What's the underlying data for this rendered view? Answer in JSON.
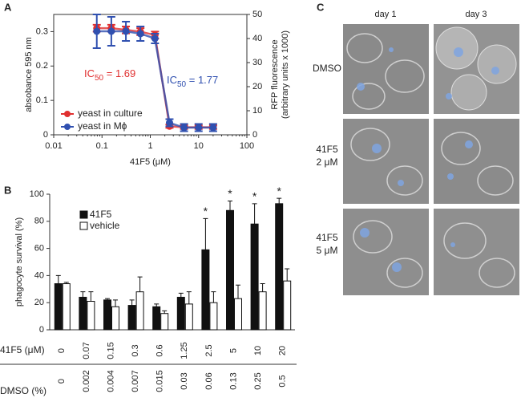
{
  "panel_labels": [
    "A",
    "B",
    "C"
  ],
  "chart_data": [
    {
      "type": "line",
      "xscale": "log",
      "xlabel": "41F5 (μM)",
      "ylabel": "absobance 595 nm",
      "y2label": [
        "RFP fluorescence",
        "(arbitrary units x 1000)"
      ],
      "xlim": [
        0.01,
        100
      ],
      "xticks": [
        0.01,
        0.1,
        1,
        10,
        100
      ],
      "ylim": [
        0,
        0.35
      ],
      "yticks": [
        0,
        0.1,
        0.2,
        0.3
      ],
      "y2lim": [
        0,
        50
      ],
      "y2ticks": [
        0,
        10,
        20,
        30,
        40,
        50
      ],
      "x": [
        0.078,
        0.156,
        0.3125,
        0.625,
        1.25,
        2.5,
        5,
        10,
        20
      ],
      "series": [
        {
          "name": "yeast in culture",
          "color": "#e03030",
          "axis": "y",
          "values": [
            0.31,
            0.31,
            0.305,
            0.3,
            0.29,
            0.025,
            0.022,
            0.022,
            0.022
          ],
          "errors": [
            0.01,
            0.01,
            0.01,
            0.01,
            0.01,
            0.005,
            0.005,
            0.005,
            0.005
          ]
        },
        {
          "name": "yeast in Mϕ",
          "color": "#3050b0",
          "axis": "y2",
          "values": [
            43,
            43,
            43,
            42,
            40,
            5,
            3,
            3,
            3
          ],
          "errors": [
            7,
            6,
            4,
            3,
            2,
            1.5,
            1.5,
            1.5,
            1.5
          ]
        }
      ],
      "annotations": [
        {
          "text": [
            "IC",
            "50",
            " = 1.69"
          ],
          "color": "#e03030"
        },
        {
          "text": [
            "IC",
            "50",
            " = 1.77"
          ],
          "color": "#3050b0"
        }
      ]
    },
    {
      "type": "bar",
      "ylabel": "phagocyte survival (%)",
      "ylim": [
        0,
        100
      ],
      "yticks": [
        0,
        20,
        40,
        60,
        80,
        100
      ],
      "row_labels": [
        "41F5 (μM)",
        "DMSO (%)"
      ],
      "categories": [
        "0",
        "0.07",
        "0.15",
        "0.3",
        "0.6",
        "1.25",
        "2.5",
        "5",
        "10",
        "20"
      ],
      "dmso_labels": [
        "0",
        "0.002",
        "0.004",
        "0.007",
        "0.015",
        "0.03",
        "0.06",
        "0.13",
        "0.25",
        "0.5"
      ],
      "series": [
        {
          "name": "41F5",
          "color": "#111111",
          "values": [
            34,
            24,
            22,
            18,
            17,
            24,
            59,
            88,
            78,
            93
          ],
          "errors": [
            6,
            4,
            1,
            4,
            2,
            3,
            23,
            7,
            15,
            4
          ],
          "star_labels": [
            null,
            null,
            null,
            null,
            null,
            null,
            "*",
            "*",
            "*",
            "*"
          ]
        },
        {
          "name": "vehicle",
          "color": "#ffffff",
          "values": [
            34,
            21,
            17,
            28,
            12,
            19,
            20,
            23,
            28,
            36
          ],
          "errors": [
            1,
            7,
            5,
            11,
            2,
            9,
            8,
            10,
            6,
            9
          ]
        }
      ]
    }
  ],
  "panel_c": {
    "columns": [
      "day 1",
      "day 3"
    ],
    "rows": [
      [
        "DMSO"
      ],
      [
        "41F5",
        "2 μM"
      ],
      [
        "41F5",
        "5 μM"
      ]
    ]
  }
}
